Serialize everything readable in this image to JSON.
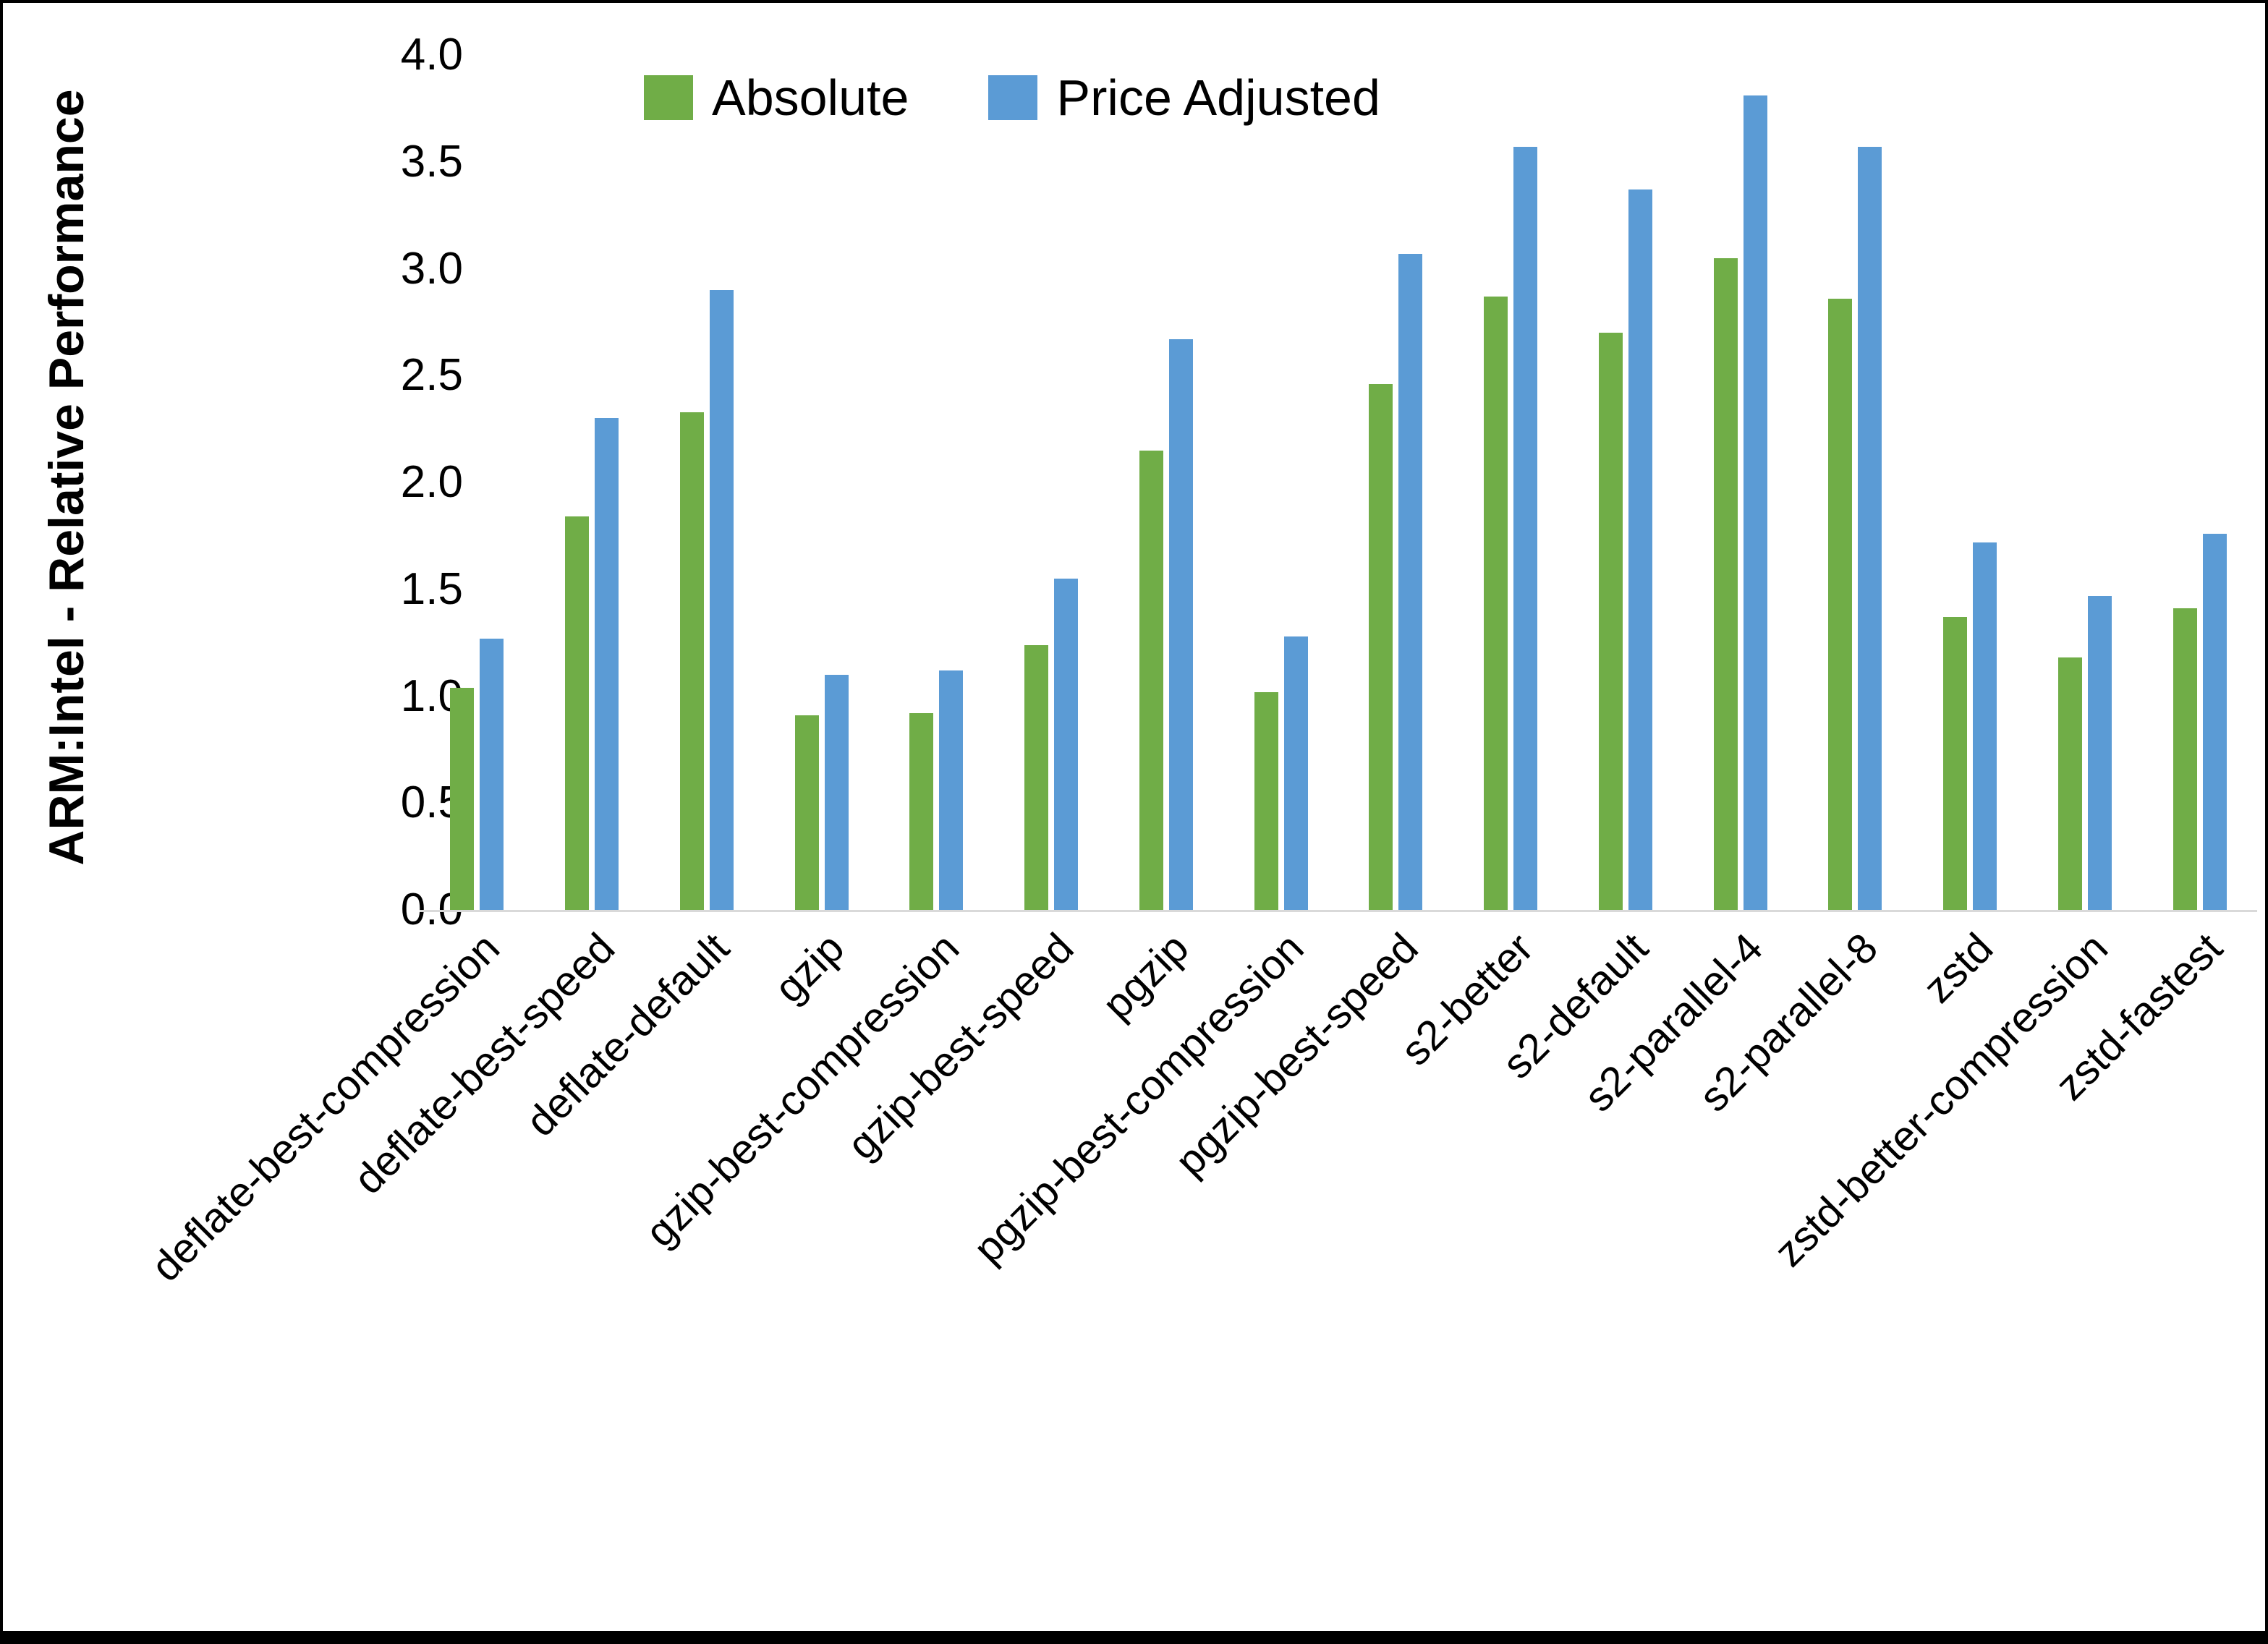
{
  "chart_data": {
    "type": "bar",
    "title": "",
    "ylabel": "ARM:Intel - Relative Performance",
    "xlabel": "",
    "categories": [
      "deflate-best-compression",
      "deflate-best-speed",
      "deflate-default",
      "gzip",
      "gzip-best-compression",
      "gzip-best-speed",
      "pgzip",
      "pgzip-best-compression",
      "pgzip-best-speed",
      "s2-better",
      "s2-default",
      "s2-parallel-4",
      "s2-parallel-8",
      "zstd",
      "zstd-better-compression",
      "zstd-fastest"
    ],
    "series": [
      {
        "name": "Absolute",
        "color": "#70AD47",
        "values": [
          1.04,
          1.84,
          2.33,
          0.91,
          0.92,
          1.24,
          2.15,
          1.02,
          2.46,
          2.87,
          2.7,
          3.05,
          2.86,
          1.37,
          1.18,
          1.41
        ]
      },
      {
        "name": "Price Adjusted",
        "color": "#5B9BD5",
        "values": [
          1.27,
          2.3,
          2.9,
          1.1,
          1.12,
          1.55,
          2.67,
          1.28,
          3.07,
          3.57,
          3.37,
          3.81,
          3.57,
          1.72,
          1.47,
          1.76
        ]
      }
    ],
    "ylim": [
      0.0,
      4.0
    ],
    "ytick_step": 0.5,
    "y_tick_labels": [
      "0.0",
      "0.5",
      "1.0",
      "1.5",
      "2.0",
      "2.5",
      "3.0",
      "3.5",
      "4.0"
    ],
    "grid": false,
    "legend_position": "top-center",
    "axis_line_color": "#d9d9d9"
  }
}
